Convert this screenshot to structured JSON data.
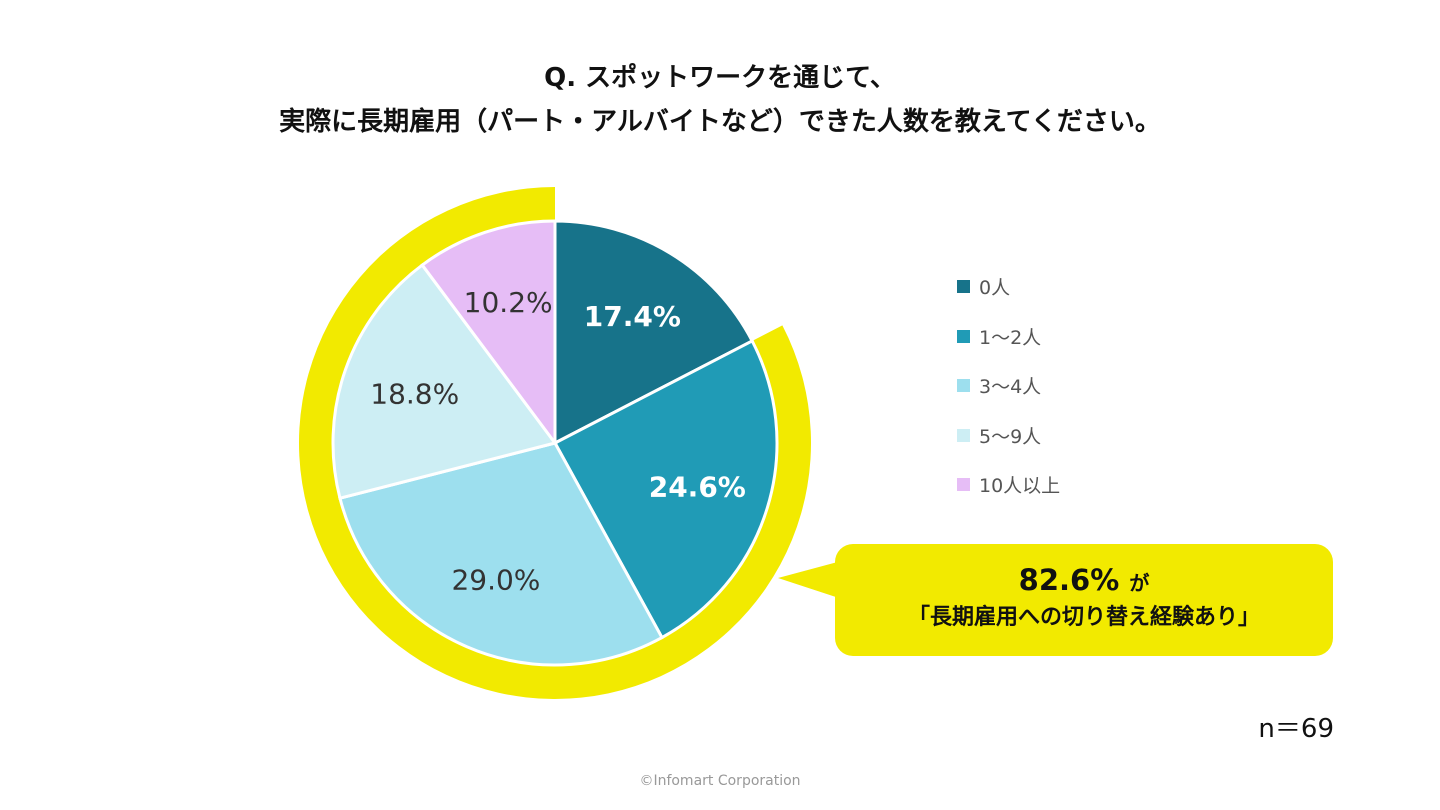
{
  "title_line1": "Q. スポットワークを通じて、",
  "title_line2": "実際に長期雇用（パート・アルバイトなど）できた人数を教えてください。",
  "chart_data": {
    "type": "pie",
    "categories": [
      "0人",
      "1〜2人",
      "3〜4人",
      "5〜9人",
      "10人以上"
    ],
    "values": [
      17.4,
      24.6,
      29.0,
      18.8,
      10.2
    ],
    "labels": [
      "17.4%",
      "24.6%",
      "29.0%",
      "18.8%",
      "10.2%"
    ],
    "colors": [
      "#17738a",
      "#209bb6",
      "#9ddfee",
      "#cdeef4",
      "#e6bdf6"
    ],
    "label_colors": [
      "#ffffff",
      "#ffffff",
      "#333333",
      "#333333",
      "#333333"
    ],
    "highlight_color": "#f2ea00",
    "highlight_categories": [
      "1〜2人",
      "3〜4人",
      "5〜9人",
      "10人以上"
    ],
    "legend_position": "right"
  },
  "callout": {
    "value": "82.6%",
    "suffix": "が",
    "text": "「長期雇用への切り替え経験あり」"
  },
  "sample_size": "n＝69",
  "footer": "©Infomart Corporation"
}
